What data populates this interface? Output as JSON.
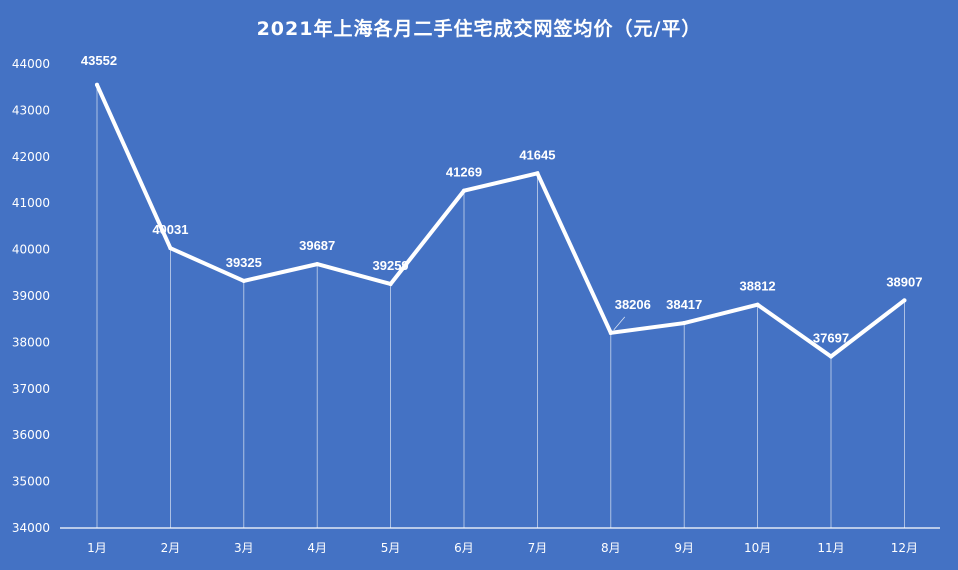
{
  "chart_data": {
    "type": "line",
    "title": "2021年上海各月二手住宅成交网签均价（元/平）",
    "categories": [
      "1月",
      "2月",
      "3月",
      "4月",
      "5月",
      "6月",
      "7月",
      "8月",
      "9月",
      "10月",
      "11月",
      "12月"
    ],
    "series": [
      {
        "values": [
          43552,
          40031,
          39325,
          39687,
          39259,
          41269,
          41645,
          38206,
          38417,
          38812,
          37697,
          38907
        ]
      }
    ],
    "ylim": [
      34000,
      44000
    ],
    "yticks": [
      34000,
      35000,
      36000,
      37000,
      38000,
      39000,
      40000,
      41000,
      42000,
      43000,
      44000
    ],
    "grid": false,
    "drop_lines": true,
    "data_labels": true,
    "colors": {
      "background": "#4472c4",
      "line": "#ffffff",
      "text": "#ffffff"
    }
  }
}
